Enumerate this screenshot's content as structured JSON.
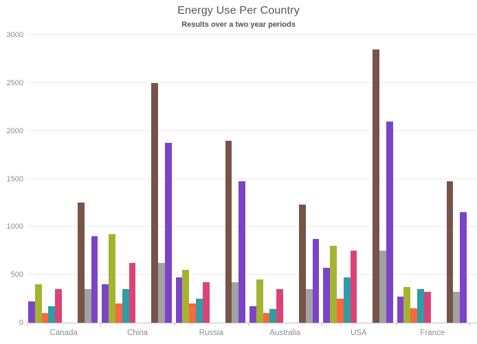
{
  "chart": {
    "title": "Energy Use Per Country",
    "subtitle": "Results over a two year periods"
  },
  "chart_data": {
    "type": "bar",
    "title": "Energy Use Per Country",
    "subtitle": "Results over a two year periods",
    "categories": [
      "Canada",
      "China",
      "Russia",
      "Australia",
      "USA",
      "France"
    ],
    "y_ticks": [
      0,
      500,
      1000,
      1500,
      2000,
      2500,
      3000
    ],
    "ylim": [
      0,
      3000
    ],
    "xlabel": "",
    "ylabel": "",
    "grid": "horizontal",
    "legend_position": "none",
    "groups": [
      {
        "name": "group-1",
        "series": [
          {
            "name": "purple",
            "color": "#7b44c8",
            "values": [
              225,
              400,
              475,
              175,
              575,
              275
            ]
          },
          {
            "name": "green",
            "color": "#a5b42f",
            "values": [
              400,
              925,
              550,
              450,
              800,
              375
            ]
          },
          {
            "name": "orange",
            "color": "#f9673d",
            "values": [
              100,
              200,
              200,
              100,
              250,
              150
            ]
          },
          {
            "name": "teal",
            "color": "#2e9da7",
            "values": [
              175,
              350,
              250,
              145,
              475,
              350
            ]
          },
          {
            "name": "pink",
            "color": "#db4377",
            "values": [
              350,
              625,
              425,
              350,
              750,
              325
            ]
          }
        ]
      },
      {
        "name": "group-2",
        "series": [
          {
            "name": "brown",
            "color": "#775349",
            "values": [
              1250,
              2500,
              1900,
              1230,
              2850,
              1475
            ]
          },
          {
            "name": "gray",
            "color": "#a2a2a2",
            "values": [
              350,
              625,
              425,
              350,
              750,
              325
            ]
          },
          {
            "name": "violet",
            "color": "#7b44c8",
            "values": [
              900,
              1875,
              1475,
              875,
              2100,
              1150
            ]
          }
        ]
      }
    ]
  },
  "style_colors": {
    "grid": "#ebebeb",
    "axis": "#c2c2c2",
    "tick_label": "#8c8c8c",
    "title_text": "#545454"
  }
}
